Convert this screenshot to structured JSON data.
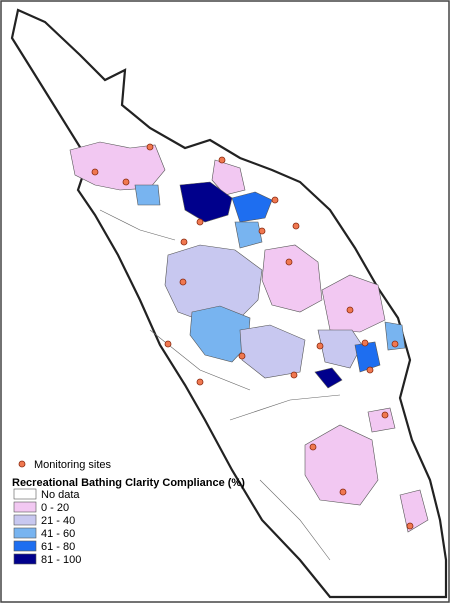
{
  "legend": {
    "sites_label": "Monitoring sites",
    "title": "Recreational Bathing Clarity Compliance (%)",
    "classes": [
      {
        "label": "No data",
        "color": "#ffffff"
      },
      {
        "label": "0 - 20",
        "color": "#f2c8f2"
      },
      {
        "label": "21 - 40",
        "color": "#c8c8f0"
      },
      {
        "label": "41 - 60",
        "color": "#78b4f0"
      },
      {
        "label": "61 - 80",
        "color": "#1e6ef0"
      },
      {
        "label": "81 - 100",
        "color": "#00008c"
      }
    ]
  }
}
